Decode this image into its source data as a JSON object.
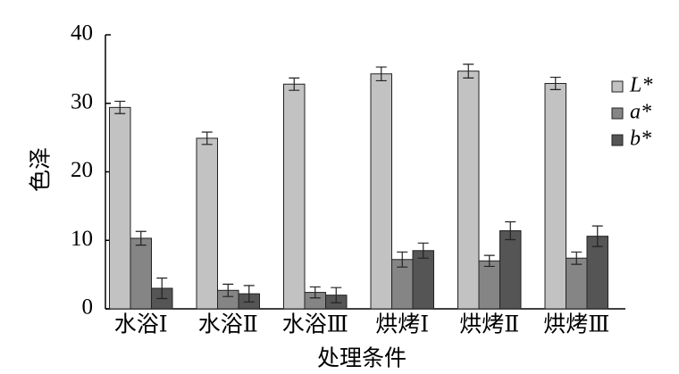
{
  "chart_data": {
    "type": "bar",
    "y_label": "色泽",
    "x_label": "处理条件",
    "categories": [
      "水浴Ⅰ",
      "水浴Ⅱ",
      "水浴Ⅲ",
      "烘烤Ⅰ",
      "烘烤Ⅱ",
      "烘烤Ⅲ"
    ],
    "series": [
      {
        "name": "L*",
        "color": "#c2c2c2",
        "values": [
          29.4,
          24.9,
          32.8,
          34.3,
          34.7,
          32.9
        ],
        "errors": [
          0.9,
          0.9,
          0.9,
          1.0,
          1.0,
          0.9
        ]
      },
      {
        "name": "a*",
        "color": "#858585",
        "values": [
          10.3,
          2.7,
          2.4,
          7.2,
          7.0,
          7.4
        ],
        "errors": [
          1.0,
          0.9,
          0.8,
          1.1,
          0.8,
          0.9
        ]
      },
      {
        "name": "b*",
        "color": "#555555",
        "values": [
          3.0,
          2.2,
          2.0,
          8.5,
          11.4,
          10.6
        ],
        "errors": [
          1.5,
          1.2,
          1.1,
          1.1,
          1.3,
          1.5
        ]
      }
    ],
    "ylim": [
      0,
      40
    ],
    "yticks": [
      0,
      10,
      20,
      30,
      40
    ],
    "grid": false,
    "legend": "top-right"
  }
}
